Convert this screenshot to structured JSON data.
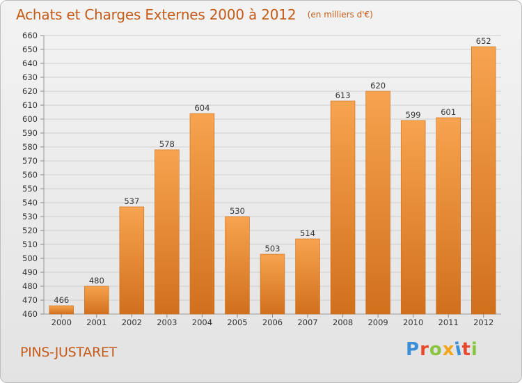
{
  "header": {
    "title": "Achats et Charges Externes 2000 à 2012",
    "unit": "(en milliers d'€)"
  },
  "footer": {
    "place": "PINS-JUSTARET",
    "logo_text": "Proxiti",
    "logo_colors": [
      "#3b8fd9",
      "#e8492c",
      "#8ac43f",
      "#f2a51a",
      "#3b8fd9",
      "#e8492c",
      "#8ac43f"
    ]
  },
  "colors": {
    "bar_light": "#f7a34f",
    "bar_dark": "#d1701c",
    "bar_border": "#c86a19",
    "grid": "#cfcfcf",
    "accent": "#c65a17"
  },
  "chart_data": {
    "type": "bar",
    "title": "Achats et Charges Externes 2000 à 2012",
    "subtitle": "(en milliers d'€)",
    "xlabel": "",
    "ylabel": "",
    "categories": [
      "2000",
      "2001",
      "2002",
      "2003",
      "2004",
      "2005",
      "2006",
      "2007",
      "2008",
      "2009",
      "2010",
      "2011",
      "2012"
    ],
    "values": [
      466,
      480,
      537,
      578,
      604,
      530,
      503,
      514,
      613,
      620,
      599,
      601,
      652
    ],
    "ylim": [
      460,
      660
    ],
    "ytick_step": 10,
    "grid": true,
    "legend": "none"
  }
}
